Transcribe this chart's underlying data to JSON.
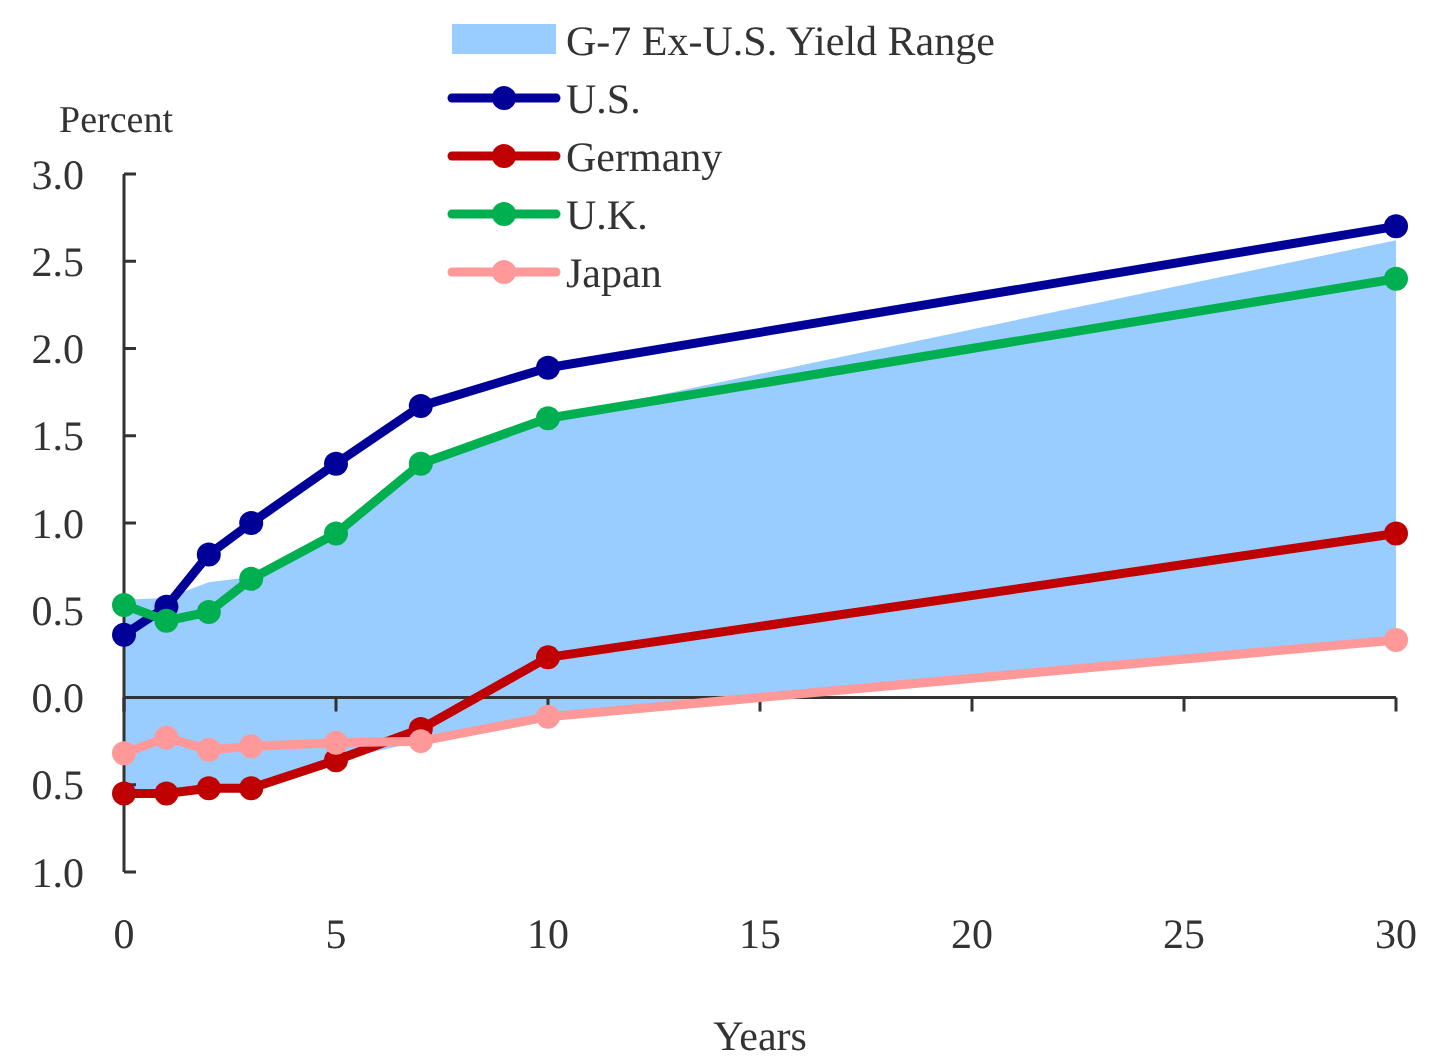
{
  "chart_data": {
    "type": "line",
    "xlabel": "Years",
    "ylabel": "Percent",
    "x": [
      0,
      1,
      2,
      3,
      5,
      7,
      10,
      30
    ],
    "xlim": [
      0,
      30
    ],
    "xticks": [
      0,
      5,
      10,
      15,
      20,
      25,
      30
    ],
    "ylim": [
      -1,
      3
    ],
    "yticks": [
      {
        "value": -1,
        "label": "1.0"
      },
      {
        "value": -0.5,
        "label": "0.5"
      },
      {
        "value": 0,
        "label": "0.0"
      },
      {
        "value": 0.5,
        "label": "0.5"
      },
      {
        "value": 1,
        "label": "1.0"
      },
      {
        "value": 1.5,
        "label": "1.5"
      },
      {
        "value": 2,
        "label": "2.0"
      },
      {
        "value": 2.5,
        "label": "2.5"
      },
      {
        "value": 3,
        "label": "3.0"
      }
    ],
    "legend": "top",
    "marker": "circle",
    "line_style": "solid",
    "series": [
      {
        "name": "G-7 Ex-U.S. Yield Range",
        "color": "#99ccff",
        "values": [
          null,
          null,
          null,
          null,
          null,
          null,
          null,
          null
        ],
        "lower": [
          -0.55,
          -0.55,
          -0.52,
          -0.52,
          -0.36,
          -0.25,
          -0.11,
          0.33
        ],
        "upper": [
          0.56,
          0.57,
          0.66,
          0.69,
          0.95,
          1.34,
          1.6,
          2.62
        ]
      },
      {
        "name": "U.S.",
        "color": "#000099",
        "values": [
          0.36,
          0.52,
          0.82,
          1.0,
          1.34,
          1.67,
          1.89,
          2.7
        ]
      },
      {
        "name": "Germany",
        "color": "#c00000",
        "values": [
          -0.55,
          -0.55,
          -0.52,
          -0.52,
          -0.36,
          -0.18,
          0.23,
          0.94
        ]
      },
      {
        "name": "U.K.",
        "color": "#00b050",
        "values": [
          0.53,
          0.44,
          0.49,
          0.68,
          0.94,
          1.34,
          1.6,
          2.4
        ]
      },
      {
        "name": "Japan",
        "color": "#ff9999",
        "values": [
          -0.32,
          -0.23,
          -0.3,
          -0.28,
          -0.26,
          -0.25,
          -0.11,
          0.33
        ]
      }
    ]
  }
}
